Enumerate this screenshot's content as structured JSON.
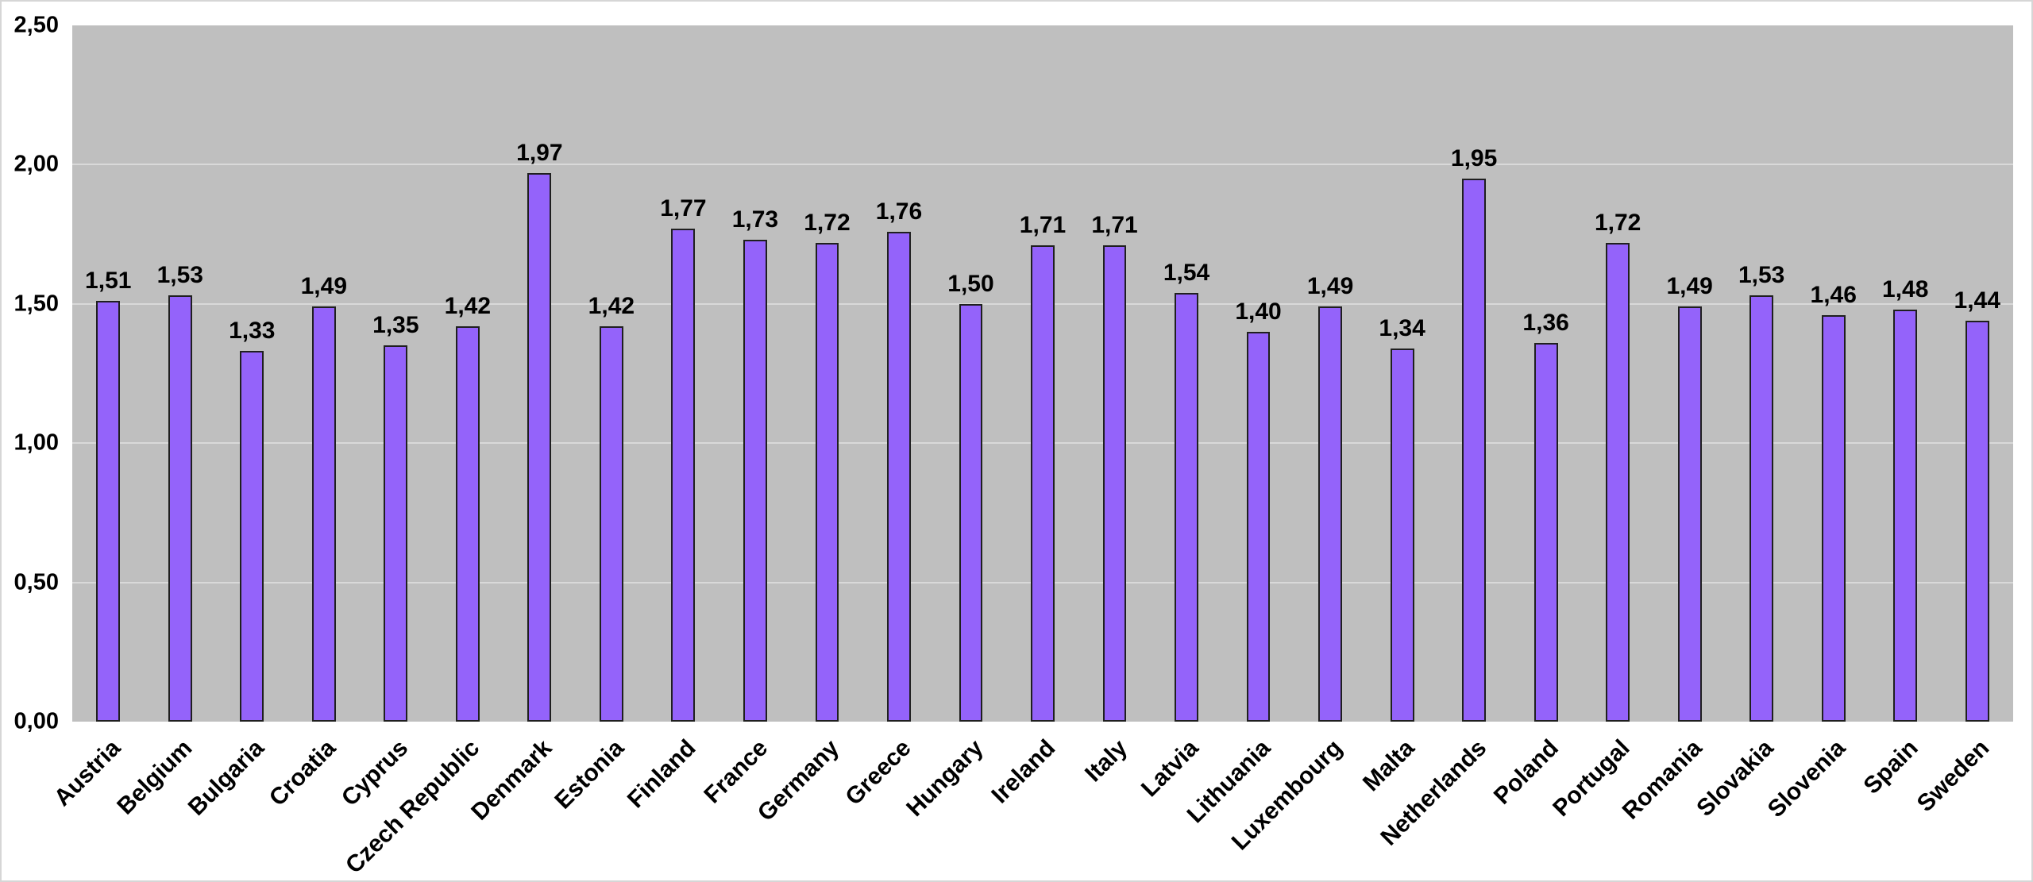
{
  "page": {
    "background": "#ffffff",
    "frame_border_color": "#d6d6d6"
  },
  "chart_data": {
    "type": "bar",
    "title": "",
    "xlabel": "",
    "ylabel": "",
    "categories": [
      "Austria",
      "Belgium",
      "Bulgaria",
      "Croatia",
      "Cyprus",
      "Czech Republic",
      "Denmark",
      "Estonia",
      "Finland",
      "France",
      "Germany",
      "Greece",
      "Hungary",
      "Ireland",
      "Italy",
      "Latvia",
      "Lithuania",
      "Luxembourg",
      "Malta",
      "Netherlands",
      "Poland",
      "Portugal",
      "Romania",
      "Slovakia",
      "Slovenia",
      "Spain",
      "Sweden"
    ],
    "values": [
      1.51,
      1.53,
      1.33,
      1.49,
      1.35,
      1.42,
      1.97,
      1.42,
      1.77,
      1.73,
      1.72,
      1.76,
      1.5,
      1.71,
      1.71,
      1.54,
      1.4,
      1.49,
      1.34,
      1.95,
      1.36,
      1.72,
      1.49,
      1.53,
      1.46,
      1.48,
      1.44
    ],
    "ylim": [
      0,
      2.5
    ],
    "yticks": [
      0,
      0.5,
      1.0,
      1.5,
      2.0,
      2.5
    ],
    "decimal_separator": ",",
    "decimal_places": 2,
    "value_labels_shown": true,
    "grid": "horizontal-major",
    "legend": "none",
    "x_label_rotation_deg": 45,
    "colors": {
      "plot_background": "#bfbfbf",
      "gridline": "#d9d9d9",
      "bar_fill": "#9463fa",
      "bar_border": "#1f1f1f",
      "text": "#000000"
    }
  }
}
